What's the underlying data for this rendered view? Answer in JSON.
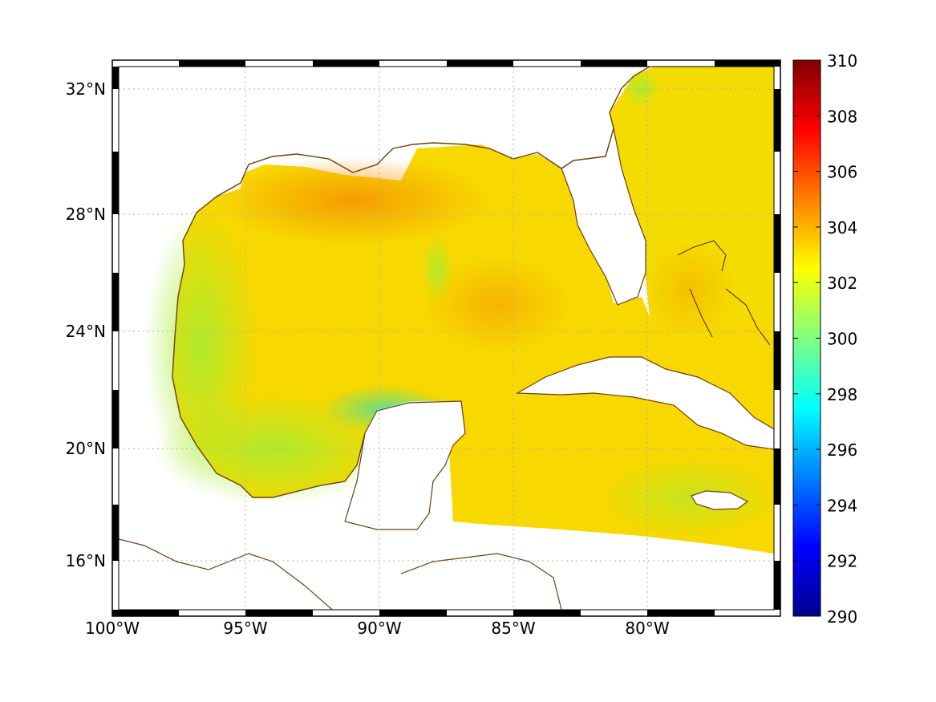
{
  "map": {
    "lon_range": [
      -100,
      -75
    ],
    "lat_range": [
      14.3,
      33
    ],
    "x_ticks": [
      {
        "lon": -100,
        "label": "100°W"
      },
      {
        "lon": -95,
        "label": "95°W"
      },
      {
        "lon": -90,
        "label": "90°W"
      },
      {
        "lon": -85,
        "label": "85°W"
      },
      {
        "lon": -80,
        "label": "80°W"
      }
    ],
    "y_ticks": [
      {
        "lat": 32,
        "label": "32°N"
      },
      {
        "lat": 28,
        "label": "28°N"
      },
      {
        "lat": 24,
        "label": "24°N"
      },
      {
        "lat": 20,
        "label": "20°N"
      },
      {
        "lat": 16,
        "label": "16°N"
      }
    ],
    "grid": true,
    "grid_style": "dotted",
    "frame_style": "black-white checkered border",
    "coastline_color": "#6b3f10",
    "field_colors": {
      "gulf_warm": "#f5b800",
      "gulf_core": "#f8e000",
      "coastal_cool": "#b8ee20",
      "north_warm": "#f59c00",
      "land": "#ffffff"
    }
  },
  "colorbar": {
    "colormap": "jet",
    "min": 290,
    "max": 310,
    "ticks": [
      "290",
      "292",
      "294",
      "296",
      "298",
      "300",
      "302",
      "304",
      "306",
      "308",
      "310"
    ]
  }
}
